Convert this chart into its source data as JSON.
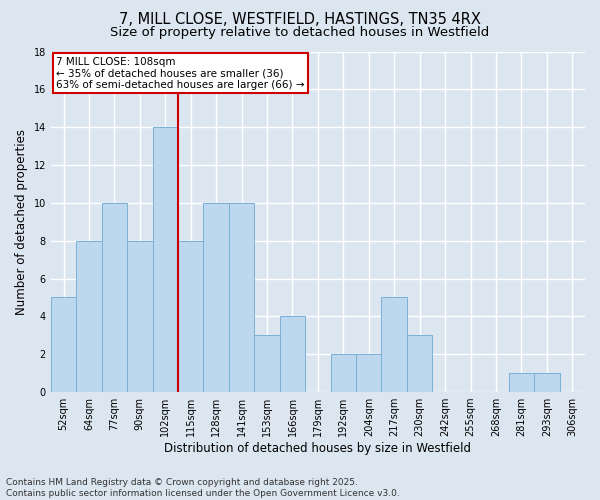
{
  "title_line1": "7, MILL CLOSE, WESTFIELD, HASTINGS, TN35 4RX",
  "title_line2": "Size of property relative to detached houses in Westfield",
  "xlabel": "Distribution of detached houses by size in Westfield",
  "ylabel": "Number of detached properties",
  "bar_labels": [
    "52sqm",
    "64sqm",
    "77sqm",
    "90sqm",
    "102sqm",
    "115sqm",
    "128sqm",
    "141sqm",
    "153sqm",
    "166sqm",
    "179sqm",
    "192sqm",
    "204sqm",
    "217sqm",
    "230sqm",
    "242sqm",
    "255sqm",
    "268sqm",
    "281sqm",
    "293sqm",
    "306sqm"
  ],
  "bar_values": [
    5,
    8,
    10,
    8,
    14,
    8,
    10,
    10,
    3,
    4,
    0,
    2,
    2,
    5,
    3,
    0,
    0,
    0,
    1,
    1,
    0
  ],
  "bar_color": "#BDD7EE",
  "bar_edge_color": "#7AAFD4",
  "background_color": "#DCE6F1",
  "grid_color": "#FFFFFF",
  "annotation_text": "7 MILL CLOSE: 108sqm\n← 35% of detached houses are smaller (36)\n63% of semi-detached houses are larger (66) →",
  "annotation_box_color": "#FFFFFF",
  "annotation_box_edge": "#CC0000",
  "ref_line_x": 4.5,
  "ref_line_color": "#CC0000",
  "ylim": [
    0,
    18
  ],
  "yticks": [
    0,
    2,
    4,
    6,
    8,
    10,
    12,
    14,
    16,
    18
  ],
  "footer_line1": "Contains HM Land Registry data © Crown copyright and database right 2025.",
  "footer_line2": "Contains public sector information licensed under the Open Government Licence v3.0.",
  "title_fontsize": 10.5,
  "subtitle_fontsize": 9.5,
  "axis_label_fontsize": 8.5,
  "tick_fontsize": 7,
  "annotation_fontsize": 7.5,
  "footer_fontsize": 6.5
}
